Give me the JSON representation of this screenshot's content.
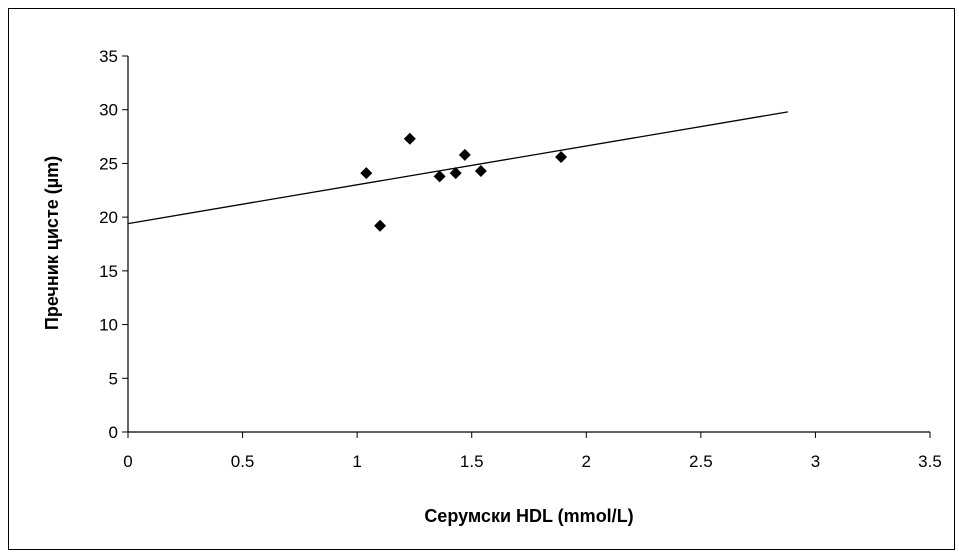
{
  "chart_data": {
    "type": "scatter",
    "title": "",
    "xlabel": "Серумски HDL (mmol/L)",
    "ylabel": "Пречник цисте (µm)",
    "xlim": [
      0,
      3.5
    ],
    "ylim": [
      0,
      35
    ],
    "xticks": [
      "0",
      "0.5",
      "1",
      "1.5",
      "2",
      "2.5",
      "3",
      "3.5"
    ],
    "yticks": [
      "0",
      "5",
      "10",
      "15",
      "20",
      "25",
      "30",
      "35"
    ],
    "grid": false,
    "legend": "none",
    "marker": "diamond",
    "marker_color": "#000000",
    "points": [
      {
        "x": 1.04,
        "y": 24.1
      },
      {
        "x": 1.1,
        "y": 19.2
      },
      {
        "x": 1.23,
        "y": 27.3
      },
      {
        "x": 1.36,
        "y": 23.8
      },
      {
        "x": 1.43,
        "y": 24.1
      },
      {
        "x": 1.47,
        "y": 25.8
      },
      {
        "x": 1.54,
        "y": 24.3
      },
      {
        "x": 1.89,
        "y": 25.6
      }
    ],
    "trendline": {
      "x": [
        0,
        2.88
      ],
      "y": [
        19.4,
        29.8
      ]
    }
  }
}
